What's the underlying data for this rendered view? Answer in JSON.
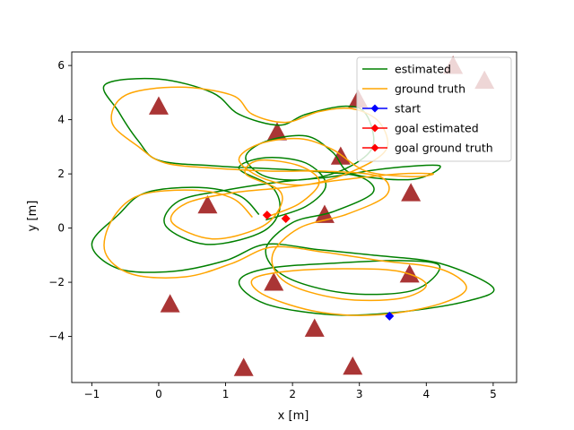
{
  "chart_data": {
    "type": "line",
    "xlabel": "x [m]",
    "ylabel": "y [m]",
    "xlim": [
      -1.3,
      5.35
    ],
    "ylim": [
      -5.7,
      6.5
    ],
    "xticks": [
      -1,
      0,
      1,
      2,
      3,
      4,
      5
    ],
    "yticks": [
      -4,
      -2,
      0,
      2,
      4,
      6
    ],
    "grid": false,
    "legend_position": "upper right",
    "colors": {
      "estimated": "#008000",
      "ground_truth": "#ffa500",
      "start": "#0000ff",
      "goal": "#ff0000",
      "landmark": "#a52a2a"
    },
    "series": [
      {
        "name": "estimated",
        "kind": "line",
        "color": "#008000",
        "points": [
          [
            1.5,
            0.5
          ],
          [
            1.2,
            1.2
          ],
          [
            0.6,
            1.5
          ],
          [
            -0.2,
            1.3
          ],
          [
            -0.6,
            0.5
          ],
          [
            -1.0,
            -0.6
          ],
          [
            -0.6,
            -1.5
          ],
          [
            0.2,
            -1.6
          ],
          [
            1.0,
            -1.2
          ],
          [
            1.6,
            -0.6
          ],
          [
            2.4,
            -0.8
          ],
          [
            3.2,
            -1.0
          ],
          [
            4.2,
            -1.3
          ],
          [
            5.0,
            -2.2
          ],
          [
            4.6,
            -2.7
          ],
          [
            3.6,
            -3.1
          ],
          [
            2.6,
            -3.2
          ],
          [
            1.6,
            -2.8
          ],
          [
            1.2,
            -2.0
          ],
          [
            1.6,
            -1.5
          ],
          [
            2.6,
            -1.3
          ],
          [
            3.6,
            -1.2
          ],
          [
            4.2,
            -1.4
          ],
          [
            3.8,
            -2.3
          ],
          [
            2.8,
            -2.4
          ],
          [
            1.9,
            -1.8
          ],
          [
            1.6,
            -0.8
          ],
          [
            2.0,
            0.2
          ],
          [
            2.6,
            0.6
          ],
          [
            3.2,
            1.3
          ],
          [
            3.0,
            1.9
          ],
          [
            2.3,
            2.1
          ],
          [
            1.6,
            2.2
          ],
          [
            0.8,
            2.3
          ],
          [
            0.0,
            2.5
          ],
          [
            -0.3,
            3.2
          ],
          [
            -0.6,
            4.3
          ],
          [
            -0.8,
            5.3
          ],
          [
            0.0,
            5.5
          ],
          [
            0.8,
            5.0
          ],
          [
            1.2,
            4.2
          ],
          [
            1.8,
            3.8
          ],
          [
            2.2,
            4.2
          ],
          [
            2.8,
            4.5
          ],
          [
            3.1,
            4.2
          ],
          [
            3.2,
            3.0
          ],
          [
            2.8,
            2.2
          ],
          [
            2.2,
            1.8
          ],
          [
            1.6,
            1.9
          ],
          [
            1.3,
            2.6
          ],
          [
            1.6,
            3.2
          ],
          [
            2.2,
            3.4
          ],
          [
            2.6,
            2.8
          ],
          [
            2.9,
            2.0
          ],
          [
            3.8,
            1.8
          ],
          [
            4.2,
            2.3
          ],
          [
            3.4,
            2.2
          ],
          [
            2.6,
            1.9
          ],
          [
            1.8,
            1.7
          ],
          [
            1.0,
            1.4
          ],
          [
            0.3,
            1.0
          ],
          [
            0.1,
            0.1
          ],
          [
            0.7,
            -0.6
          ],
          [
            1.5,
            -0.2
          ],
          [
            1.8,
            0.6
          ],
          [
            1.7,
            1.5
          ],
          [
            1.2,
            2.2
          ],
          [
            1.6,
            2.6
          ],
          [
            2.2,
            2.4
          ],
          [
            2.5,
            1.6
          ],
          [
            2.2,
            0.8
          ],
          [
            1.6,
            0.3
          ]
        ]
      },
      {
        "name": "ground truth",
        "kind": "line",
        "color": "#ffa500",
        "points": [
          [
            1.4,
            0.4
          ],
          [
            1.1,
            1.1
          ],
          [
            0.5,
            1.4
          ],
          [
            -0.3,
            1.2
          ],
          [
            -0.7,
            0.3
          ],
          [
            -0.8,
            -0.9
          ],
          [
            -0.4,
            -1.7
          ],
          [
            0.4,
            -1.8
          ],
          [
            1.1,
            -1.3
          ],
          [
            1.7,
            -0.7
          ],
          [
            2.5,
            -0.9
          ],
          [
            3.3,
            -1.2
          ],
          [
            4.2,
            -1.5
          ],
          [
            4.6,
            -2.2
          ],
          [
            4.2,
            -2.8
          ],
          [
            3.3,
            -3.2
          ],
          [
            2.4,
            -3.1
          ],
          [
            1.6,
            -2.5
          ],
          [
            1.4,
            -1.9
          ],
          [
            1.9,
            -1.6
          ],
          [
            2.8,
            -1.5
          ],
          [
            3.6,
            -1.6
          ],
          [
            4.0,
            -2.1
          ],
          [
            3.6,
            -2.6
          ],
          [
            2.7,
            -2.6
          ],
          [
            1.9,
            -2.0
          ],
          [
            1.7,
            -1.0
          ],
          [
            2.1,
            0.0
          ],
          [
            2.8,
            0.5
          ],
          [
            3.4,
            1.2
          ],
          [
            3.3,
            1.9
          ],
          [
            2.5,
            2.1
          ],
          [
            1.7,
            2.1
          ],
          [
            0.9,
            2.2
          ],
          [
            0.1,
            2.4
          ],
          [
            -0.3,
            3.0
          ],
          [
            -0.7,
            3.9
          ],
          [
            -0.5,
            4.9
          ],
          [
            0.3,
            5.2
          ],
          [
            1.1,
            4.9
          ],
          [
            1.4,
            4.2
          ],
          [
            1.9,
            3.9
          ],
          [
            2.4,
            4.3
          ],
          [
            2.9,
            4.4
          ],
          [
            3.3,
            3.9
          ],
          [
            3.4,
            2.9
          ],
          [
            2.9,
            2.1
          ],
          [
            2.2,
            1.6
          ],
          [
            1.6,
            1.8
          ],
          [
            1.2,
            2.5
          ],
          [
            1.5,
            3.1
          ],
          [
            2.1,
            3.3
          ],
          [
            2.6,
            2.9
          ],
          [
            3.1,
            2.1
          ],
          [
            3.8,
            1.9
          ],
          [
            4.1,
            2.0
          ],
          [
            3.6,
            2.0
          ],
          [
            2.8,
            1.8
          ],
          [
            1.9,
            1.5
          ],
          [
            1.1,
            1.3
          ],
          [
            0.4,
            0.9
          ],
          [
            0.2,
            0.2
          ],
          [
            0.8,
            -0.4
          ],
          [
            1.5,
            0.0
          ],
          [
            1.8,
            0.7
          ],
          [
            1.8,
            1.4
          ],
          [
            1.3,
            2.0
          ],
          [
            1.5,
            2.5
          ],
          [
            2.1,
            2.3
          ],
          [
            2.4,
            1.7
          ],
          [
            2.1,
            0.9
          ],
          [
            1.6,
            0.4
          ]
        ]
      },
      {
        "name": "start",
        "kind": "marker",
        "marker": "diamond",
        "color": "#0000ff",
        "points": [
          [
            3.45,
            -3.25
          ]
        ]
      },
      {
        "name": "goal estimated",
        "kind": "marker",
        "marker": "diamond",
        "color": "#ff0000",
        "points": [
          [
            1.9,
            0.35
          ]
        ]
      },
      {
        "name": "goal ground truth",
        "kind": "marker",
        "marker": "diamond",
        "color": "#ff0000",
        "points": [
          [
            1.62,
            0.48
          ]
        ]
      }
    ],
    "landmarks": {
      "marker": "triangle",
      "color": "#a52a2a",
      "points": [
        [
          0.0,
          4.5
        ],
        [
          1.77,
          3.55
        ],
        [
          2.98,
          4.75
        ],
        [
          4.4,
          6.0
        ],
        [
          4.87,
          5.45
        ],
        [
          2.72,
          2.65
        ],
        [
          3.77,
          1.3
        ],
        [
          0.73,
          0.85
        ],
        [
          2.48,
          0.5
        ],
        [
          1.72,
          -2.0
        ],
        [
          3.75,
          -1.7
        ],
        [
          0.17,
          -2.8
        ],
        [
          2.33,
          -3.7
        ],
        [
          1.27,
          -5.15
        ],
        [
          2.9,
          -5.1
        ]
      ]
    },
    "legend": [
      {
        "label": "estimated",
        "style": "line",
        "color": "#008000"
      },
      {
        "label": "ground truth",
        "style": "line",
        "color": "#ffa500"
      },
      {
        "label": "start",
        "style": "line-marker",
        "color": "#0000ff"
      },
      {
        "label": "goal estimated",
        "style": "line-marker",
        "color": "#ff0000"
      },
      {
        "label": "goal ground truth",
        "style": "line-marker",
        "color": "#ff0000"
      }
    ]
  }
}
